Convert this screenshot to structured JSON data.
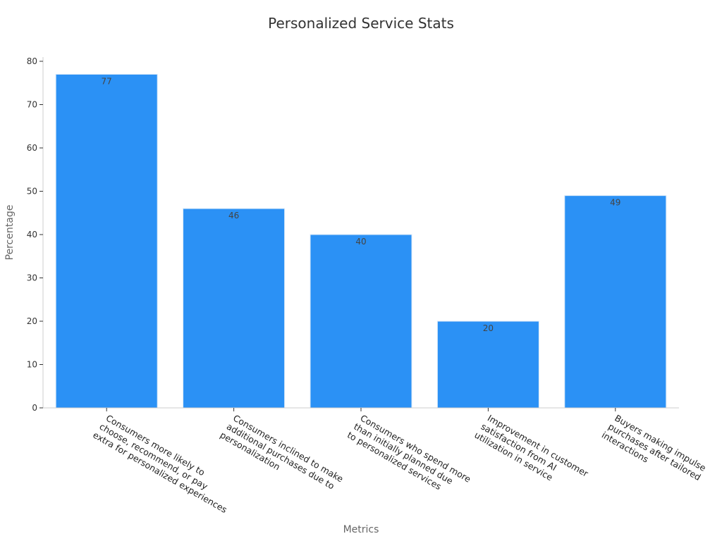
{
  "chart_data": {
    "type": "bar",
    "title": "Personalized Service Stats",
    "xlabel": "Metrics",
    "ylabel": "Percentage",
    "ylim": [
      0,
      80
    ],
    "yticks": [
      0,
      10,
      20,
      30,
      40,
      50,
      60,
      70,
      80
    ],
    "grid": false,
    "bar_color": "#2b91f5",
    "categories": [
      [
        "Consumers more likely to",
        "choose, recommend, or pay",
        "extra for personalized experiences"
      ],
      [
        "Consumers inclined to make",
        "additional purchases due to",
        "personalization"
      ],
      [
        "Consumers who spend more",
        "than initially planned due",
        "to personalized services"
      ],
      [
        "Improvement in customer",
        "satisfaction from AI",
        "utilization in service"
      ],
      [
        "Buyers making impulse",
        "purchases after tailored",
        "interactions"
      ]
    ],
    "values": [
      77,
      46,
      40,
      20,
      49
    ]
  }
}
